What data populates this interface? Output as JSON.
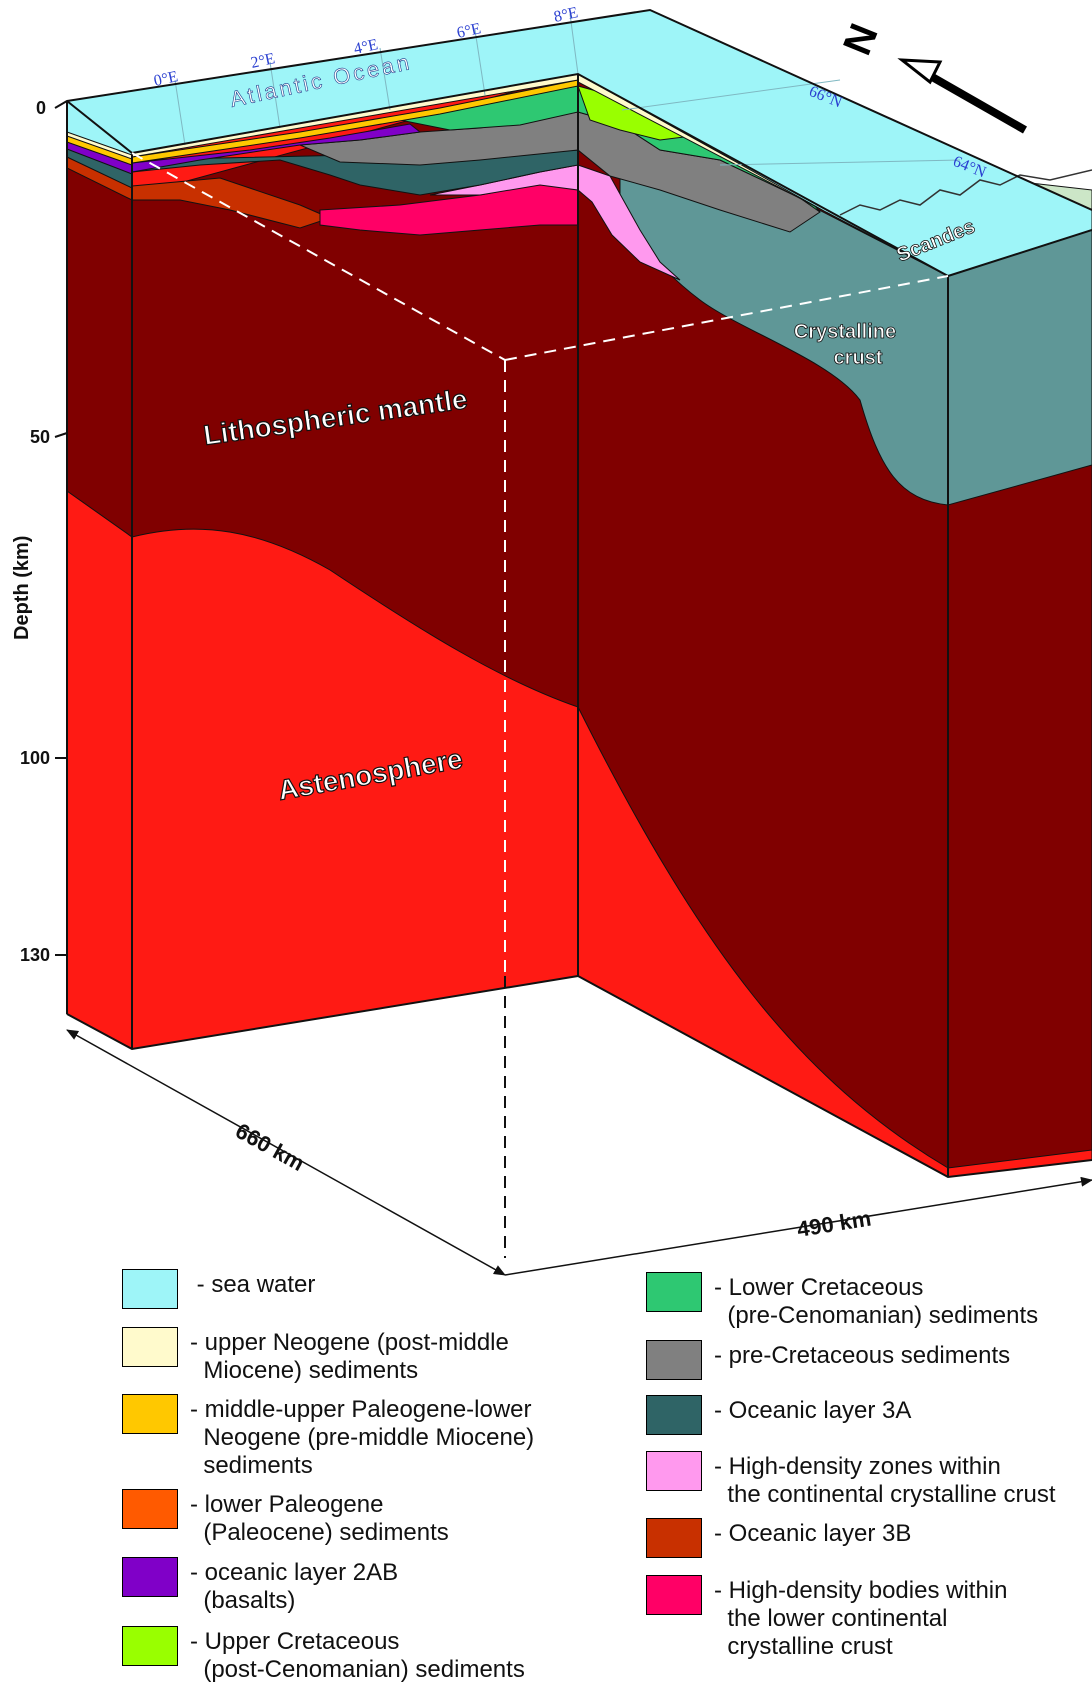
{
  "diagram": {
    "depth_axis_title": "Depth (km)",
    "depth_ticks": [
      "0",
      "50",
      "100",
      "130"
    ],
    "longitude_labels": [
      "0°E",
      "2°E",
      "4°E",
      "6°E",
      "8°E"
    ],
    "latitude_labels": [
      "66°N",
      "64°N"
    ],
    "ocean_label": "Atlantic Ocean",
    "land_label": "Scandes",
    "crystalline_label_line1": "Crystalline",
    "crystalline_label_line2": "crust",
    "mantle_label": "Lithospheric mantle",
    "asthenosphere_label": "Astenosphere",
    "north_label": "N",
    "dimension_left": "660 km",
    "dimension_right": "490 km"
  },
  "colors": {
    "sea_water": "#9ef5f8",
    "upper_neogene": "#fffacc",
    "paleogene_neogene": "#ffc800",
    "lower_paleogene": "#ff5a00",
    "layer_2ab": "#8000c8",
    "upper_cretaceous": "#99ff00",
    "lower_cretaceous": "#2ec872",
    "pre_cretaceous": "#808080",
    "layer_3a": "#2f6466",
    "high_density_zones": "#ff99ee",
    "layer_3b": "#c83000",
    "high_density_bodies": "#ff0066",
    "lithospheric_mantle": "#800000",
    "asthenosphere": "#ff1a14",
    "crystalline_crust": "#5f9797",
    "land": "#cce6c7"
  },
  "legend_left": [
    {
      "color": "#9ef5f8",
      "text": " - sea water"
    },
    {
      "color": "#fffacc",
      "text": "- upper Neogene (post-middle\n  Miocene) sediments"
    },
    {
      "color": "#ffc800",
      "text": "- middle-upper Paleogene-lower\n  Neogene (pre-middle Miocene)\n  sediments"
    },
    {
      "color": "#ff5a00",
      "text": "- lower Paleogene\n  (Paleocene) sediments"
    },
    {
      "color": "#8000c8",
      "text": "- oceanic layer 2AB\n  (basalts)"
    },
    {
      "color": "#99ff00",
      "text": "- Upper Cretaceous\n  (post-Cenomanian) sediments"
    }
  ],
  "legend_right": [
    {
      "color": "#2ec872",
      "text": "- Lower Cretaceous\n  (pre-Cenomanian) sediments"
    },
    {
      "color": "#808080",
      "text": "- pre-Cretaceous sediments"
    },
    {
      "color": "#2f6466",
      "text": "- Oceanic layer 3A"
    },
    {
      "color": "#ff99ee",
      "text": "- High-density zones within\n  the continental crystalline crust"
    },
    {
      "color": "#c83000",
      "text": "- Oceanic layer 3B"
    },
    {
      "color": "#ff0066",
      "text": "- High-density bodies within\n  the lower continental\n  crystalline crust"
    }
  ]
}
